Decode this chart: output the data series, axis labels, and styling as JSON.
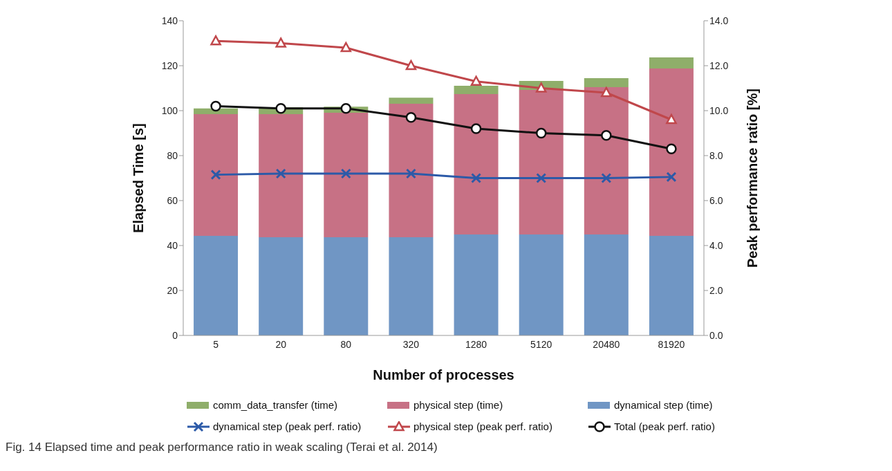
{
  "chart_data": {
    "type": "bar",
    "stacked": true,
    "xlabel": "Number of processes",
    "ylabel": "Elapsed Time [s]",
    "y2label": "Peak performance ratio [%]",
    "categories": [
      "5",
      "20",
      "80",
      "320",
      "1280",
      "5120",
      "20480",
      "81920"
    ],
    "series": [
      {
        "name": "dynamical step (time)",
        "color": "#7096c4",
        "values": [
          44.3,
          43.7,
          43.7,
          43.7,
          44.9,
          44.9,
          44.9,
          44.3
        ]
      },
      {
        "name": "physical step (time)",
        "color": "#c77185",
        "values": [
          54.2,
          54.8,
          55.4,
          59.4,
          62.5,
          64.3,
          65.6,
          74.5
        ]
      },
      {
        "name": "comm_data_transfer (time)",
        "color": "#8fae6a",
        "values": [
          2.5,
          3.0,
          2.7,
          2.7,
          3.7,
          4.0,
          4.0,
          4.9
        ]
      },
      {
        "name": "dynamical step (peak perf. ratio)",
        "type": "line",
        "axis": "y2",
        "marker": "cross",
        "color": "#2c5aa8",
        "values": [
          7.15,
          7.2,
          7.2,
          7.2,
          7.0,
          7.0,
          7.0,
          7.05
        ]
      },
      {
        "name": "physical step (peak perf. ratio)",
        "type": "line",
        "axis": "y2",
        "marker": "triangle",
        "color": "#c0474b",
        "values": [
          13.1,
          13.0,
          12.8,
          12.0,
          11.3,
          11.0,
          10.8,
          9.6
        ]
      },
      {
        "name": "Total (peak perf. ratio)",
        "type": "line",
        "axis": "y2",
        "marker": "circle",
        "color": "#111111",
        "values": [
          10.2,
          10.1,
          10.1,
          9.7,
          9.2,
          9.0,
          8.9,
          8.3
        ]
      }
    ],
    "ylim": [
      0,
      140
    ],
    "yticks": [
      0,
      20,
      40,
      60,
      80,
      100,
      120,
      140
    ],
    "y2lim": [
      0,
      14
    ],
    "y2ticks": [
      {
        "value": 0,
        "label": "0.0"
      },
      {
        "value": 2,
        "label": "2.0"
      },
      {
        "value": 4,
        "label": "4.0"
      },
      {
        "value": 6,
        "label": "6.0"
      },
      {
        "value": 8,
        "label": "8.0"
      },
      {
        "value": 10,
        "label": "10.0"
      },
      {
        "value": 12,
        "label": "12.0"
      },
      {
        "value": 14,
        "label": "14.0"
      }
    ],
    "grid": false,
    "legend": "bottom",
    "annotations": [
      "Fig. 14 Elapsed time and peak performance ratio in weak scaling (Terai et al. 2014)"
    ]
  }
}
